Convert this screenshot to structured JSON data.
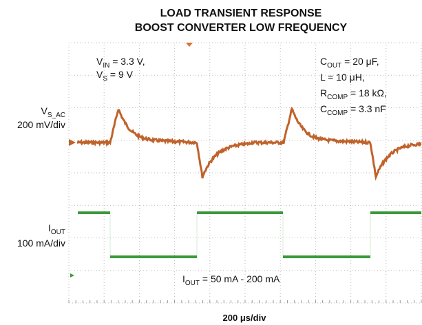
{
  "title": [
    "LOAD TRANSIENT RESPONSE",
    "BOOST CONVERTER LOW FREQUENCY"
  ],
  "channels": [
    {
      "name": [
        "V",
        "S_AC"
      ],
      "scale": "200 mV/div"
    },
    {
      "name": [
        "I",
        "OUT"
      ],
      "scale": "100 mA/div"
    }
  ],
  "annotations": [
    [
      "V",
      "IN",
      " = 3.3 V,"
    ],
    [
      "V",
      "S",
      " = 9 V"
    ],
    [
      "C",
      "OUT",
      " = 20 μF,"
    ],
    [
      "L = 10 μH,"
    ],
    [
      "R",
      "COMP",
      " = 18 kΩ,"
    ],
    [
      "C",
      "COMP",
      " = 3.3 nF"
    ],
    [
      "I",
      "OUT",
      " = 50 mA - 200 mA"
    ]
  ],
  "x_label": "200 μs/div"
}
